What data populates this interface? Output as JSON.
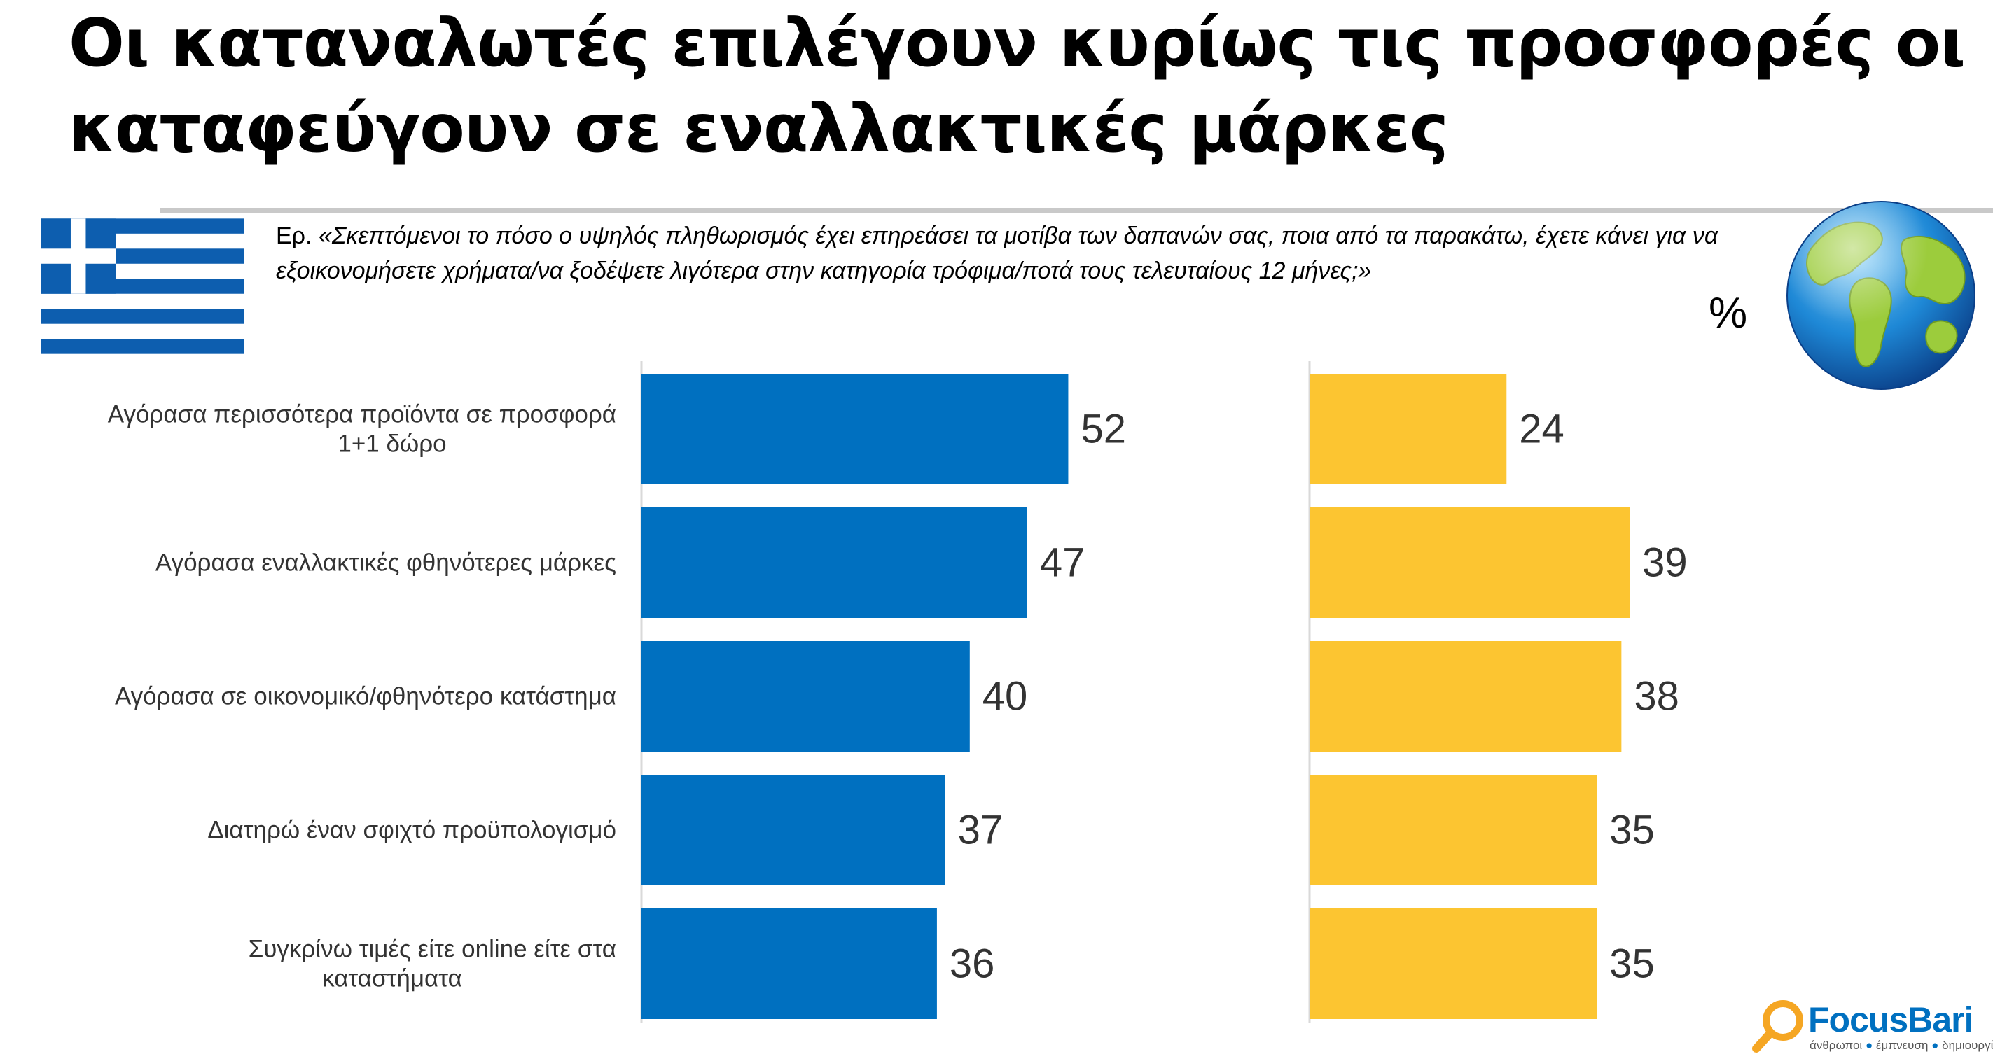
{
  "title": {
    "line1": "Οι καταναλωτές επιλέγουν κυρίως τις προσφορές οι",
    "line2": "καταφεύγουν σε εναλλακτικές μάρκες"
  },
  "question": {
    "prefix": "Ερ. ",
    "text": "«Σκεπτόμενοι το πόσο ο υψηλός πληθωρισμός έχει επηρεάσει τα μοτίβα των δαπανών σας, ποια από τα παρακάτω, έχετε κάνει για να εξοικονομήσετε χρήματα/να ξοδέψετε λιγότερα στην κατηγορία τρόφιμα/ποτά τους τελευταίους 12 μήνες;»"
  },
  "unit_label": "%",
  "icons": {
    "left": "greece-flag-icon",
    "right": "globe-icon"
  },
  "colors": {
    "greece": "#0070c0",
    "global": "#fcc531",
    "flag_blue": "#0d5eaf"
  },
  "chart_data": {
    "type": "bar",
    "orientation": "horizontal",
    "categories": [
      [
        "Αγόρασα περισσότερα προϊόντα σε προσφορά",
        "1+1 δώρο"
      ],
      [
        "Αγόρασα εναλλακτικές φθηνότερες μάρκες"
      ],
      [
        "Αγόρασα σε οικονομικό/φθηνότερο κατάστημα"
      ],
      [
        "Διατηρώ έναν σφιχτό προϋπολογισμό"
      ],
      [
        "Συγκρίνω τιμές είτε online είτε στα",
        "καταστήματα"
      ]
    ],
    "series": [
      {
        "icon": "greece-flag-icon",
        "color": "#0070c0",
        "values": [
          52,
          47,
          40,
          37,
          36
        ]
      },
      {
        "icon": "globe-icon",
        "color": "#fcc531",
        "values": [
          24,
          39,
          38,
          35,
          35
        ]
      }
    ],
    "xlim": [
      0,
      100
    ],
    "grid": false,
    "legend": "none",
    "data_labels": true
  },
  "logo": {
    "word": "FocusBari",
    "tag": [
      "άνθρωποι",
      "έμπνευση",
      "δημιουργία"
    ]
  }
}
